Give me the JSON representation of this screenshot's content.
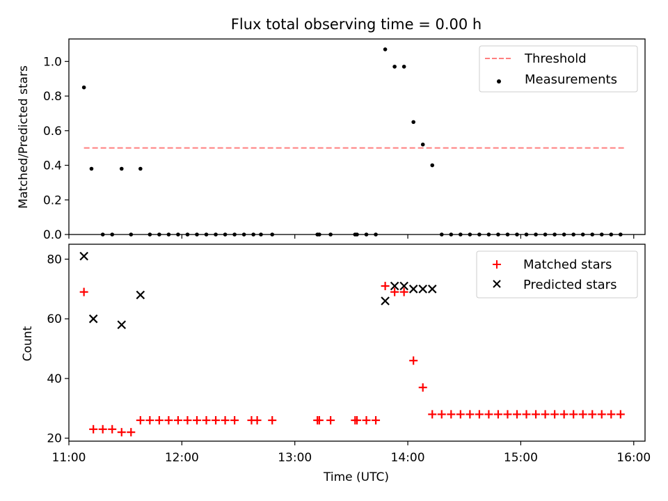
{
  "title": "Flux total observing time = 0.00 h",
  "chart_data": [
    {
      "type": "scatter",
      "title": "Flux total observing time = 0.00 h",
      "xlabel": "",
      "ylabel": "Matched/Predicted stars",
      "xlim": [
        "11:00",
        "16:06"
      ],
      "ylim": [
        0,
        1.13
      ],
      "yticks": [
        "0.0",
        "0.2",
        "0.4",
        "0.6",
        "0.8",
        "1.0"
      ],
      "legend_position": "top-right",
      "threshold": {
        "name": "Threshold",
        "value": 0.5,
        "x_start": "11:08",
        "x_end": "15:55",
        "color": "#ff7f7f",
        "style": "dashed"
      },
      "series": [
        {
          "name": "Measurements",
          "marker": "dot",
          "color": "#000000",
          "points": [
            [
              "11:08",
              0.85
            ],
            [
              "11:12",
              0.38
            ],
            [
              "11:18",
              0.0
            ],
            [
              "11:23",
              0.0
            ],
            [
              "11:28",
              0.38
            ],
            [
              "11:33",
              0.0
            ],
            [
              "11:38",
              0.38
            ],
            [
              "11:43",
              0.0
            ],
            [
              "11:48",
              0.0
            ],
            [
              "11:53",
              0.0
            ],
            [
              "11:58",
              0.0
            ],
            [
              "12:03",
              0.0
            ],
            [
              "12:08",
              0.0
            ],
            [
              "12:13",
              0.0
            ],
            [
              "12:18",
              0.0
            ],
            [
              "12:23",
              0.0
            ],
            [
              "12:28",
              0.0
            ],
            [
              "12:33",
              0.0
            ],
            [
              "12:38",
              0.0
            ],
            [
              "12:42",
              0.0
            ],
            [
              "12:48",
              0.0
            ],
            [
              "13:12",
              0.0
            ],
            [
              "13:13",
              0.0
            ],
            [
              "13:19",
              0.0
            ],
            [
              "13:32",
              0.0
            ],
            [
              "13:33",
              0.0
            ],
            [
              "13:38",
              0.0
            ],
            [
              "13:43",
              0.0
            ],
            [
              "13:48",
              1.07
            ],
            [
              "13:53",
              0.97
            ],
            [
              "13:58",
              0.97
            ],
            [
              "14:03",
              0.65
            ],
            [
              "14:08",
              0.52
            ],
            [
              "14:13",
              0.4
            ],
            [
              "14:18",
              0.0
            ],
            [
              "14:23",
              0.0
            ],
            [
              "14:28",
              0.0
            ],
            [
              "14:33",
              0.0
            ],
            [
              "14:38",
              0.0
            ],
            [
              "14:43",
              0.0
            ],
            [
              "14:48",
              0.0
            ],
            [
              "14:53",
              0.0
            ],
            [
              "14:58",
              0.0
            ],
            [
              "15:03",
              0.0
            ],
            [
              "15:08",
              0.0
            ],
            [
              "15:13",
              0.0
            ],
            [
              "15:18",
              0.0
            ],
            [
              "15:23",
              0.0
            ],
            [
              "15:28",
              0.0
            ],
            [
              "15:33",
              0.0
            ],
            [
              "15:38",
              0.0
            ],
            [
              "15:43",
              0.0
            ],
            [
              "15:48",
              0.0
            ],
            [
              "15:53",
              0.0
            ]
          ]
        }
      ]
    },
    {
      "type": "scatter",
      "title": "",
      "xlabel": "Time (UTC)",
      "ylabel": "Count",
      "xlim": [
        "11:00",
        "16:06"
      ],
      "ylim": [
        19,
        85
      ],
      "xticks": [
        "11:00",
        "12:00",
        "13:00",
        "14:00",
        "15:00",
        "16:00"
      ],
      "yticks": [
        "20",
        "40",
        "60",
        "80"
      ],
      "legend_position": "top-right",
      "series": [
        {
          "name": "Matched stars",
          "marker": "plus",
          "color": "#ff0000",
          "points": [
            [
              "11:08",
              69
            ],
            [
              "11:13",
              23
            ],
            [
              "11:18",
              23
            ],
            [
              "11:23",
              23
            ],
            [
              "11:28",
              22
            ],
            [
              "11:33",
              22
            ],
            [
              "11:38",
              26
            ],
            [
              "11:43",
              26
            ],
            [
              "11:48",
              26
            ],
            [
              "11:53",
              26
            ],
            [
              "11:58",
              26
            ],
            [
              "12:03",
              26
            ],
            [
              "12:08",
              26
            ],
            [
              "12:13",
              26
            ],
            [
              "12:18",
              26
            ],
            [
              "12:23",
              26
            ],
            [
              "12:28",
              26
            ],
            [
              "12:37",
              26
            ],
            [
              "12:40",
              26
            ],
            [
              "12:48",
              26
            ],
            [
              "13:12",
              26
            ],
            [
              "13:13",
              26
            ],
            [
              "13:19",
              26
            ],
            [
              "13:32",
              26
            ],
            [
              "13:33",
              26
            ],
            [
              "13:38",
              26
            ],
            [
              "13:43",
              26
            ],
            [
              "13:48",
              71
            ],
            [
              "13:53",
              69
            ],
            [
              "13:58",
              69
            ],
            [
              "14:03",
              46
            ],
            [
              "14:08",
              37
            ],
            [
              "14:13",
              28
            ],
            [
              "14:18",
              28
            ],
            [
              "14:23",
              28
            ],
            [
              "14:28",
              28
            ],
            [
              "14:33",
              28
            ],
            [
              "14:38",
              28
            ],
            [
              "14:43",
              28
            ],
            [
              "14:48",
              28
            ],
            [
              "14:53",
              28
            ],
            [
              "14:58",
              28
            ],
            [
              "15:03",
              28
            ],
            [
              "15:08",
              28
            ],
            [
              "15:13",
              28
            ],
            [
              "15:18",
              28
            ],
            [
              "15:23",
              28
            ],
            [
              "15:28",
              28
            ],
            [
              "15:33",
              28
            ],
            [
              "15:38",
              28
            ],
            [
              "15:43",
              28
            ],
            [
              "15:48",
              28
            ],
            [
              "15:53",
              28
            ]
          ]
        },
        {
          "name": "Predicted stars",
          "marker": "x",
          "color": "#000000",
          "points": [
            [
              "11:08",
              81
            ],
            [
              "11:13",
              60
            ],
            [
              "11:28",
              58
            ],
            [
              "11:38",
              68
            ],
            [
              "13:48",
              66
            ],
            [
              "13:53",
              71
            ],
            [
              "13:58",
              71
            ],
            [
              "14:03",
              70
            ],
            [
              "14:08",
              70
            ],
            [
              "14:13",
              70
            ]
          ]
        }
      ]
    }
  ]
}
